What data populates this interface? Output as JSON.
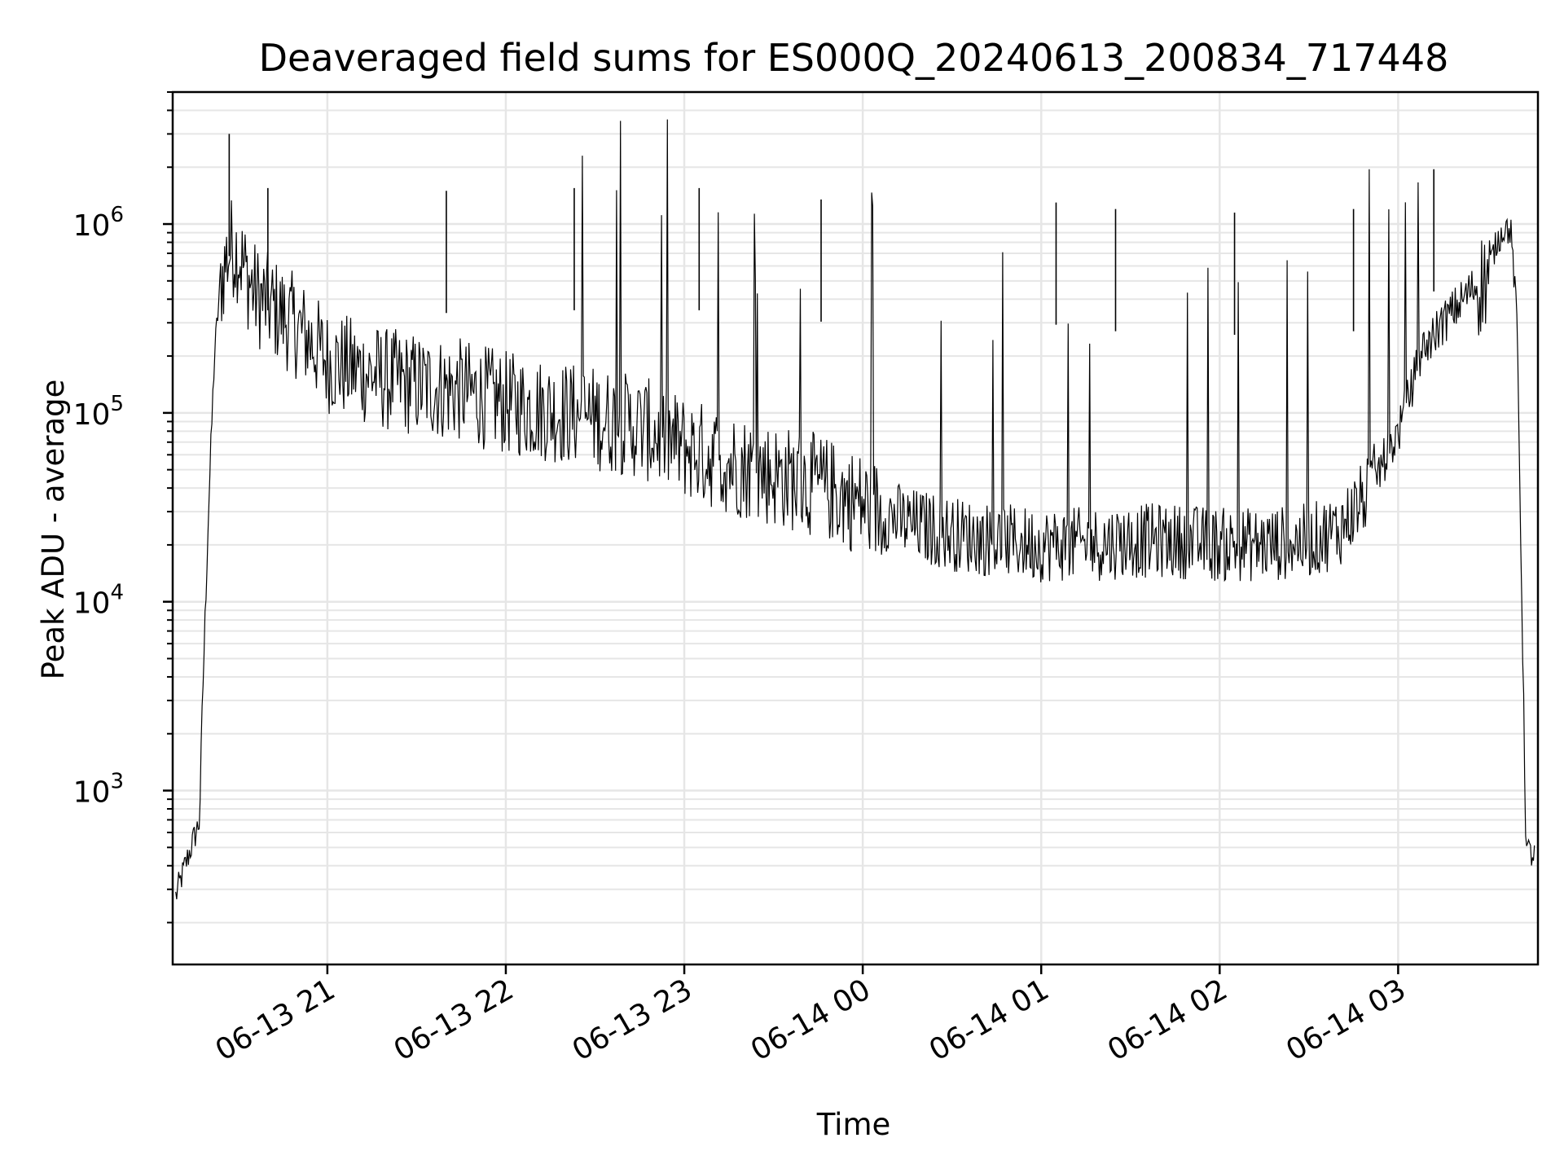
{
  "chart_data": {
    "type": "line",
    "title": "Deaveraged field sums for ES000Q_20240613_200834_717448",
    "xlabel": "Time",
    "ylabel": "Peak ADU - average",
    "yscale": "log",
    "grid": true,
    "line_color": "#000000",
    "grid_color": "#e6e6e6",
    "xlim": [
      "2024-06-13 20:08",
      "2024-06-14 03:47"
    ],
    "ylim": [
      120,
      5000000
    ],
    "x_ticks": [
      {
        "value": "2024-06-13 21:00",
        "label": "06-13 21"
      },
      {
        "value": "2024-06-13 22:00",
        "label": "06-13 22"
      },
      {
        "value": "2024-06-13 23:00",
        "label": "06-13 23"
      },
      {
        "value": "2024-06-14 00:00",
        "label": "06-14 00"
      },
      {
        "value": "2024-06-14 01:00",
        "label": "06-14 01"
      },
      {
        "value": "2024-06-14 02:00",
        "label": "06-14 02"
      },
      {
        "value": "2024-06-14 03:00",
        "label": "06-14 03"
      }
    ],
    "y_ticks": [
      {
        "value": 1000,
        "base": "10",
        "exp": "3"
      },
      {
        "value": 10000,
        "base": "10",
        "exp": "4"
      },
      {
        "value": 100000,
        "base": "10",
        "exp": "5"
      },
      {
        "value": 1000000,
        "base": "10",
        "exp": "6"
      }
    ],
    "series": [
      {
        "x": [
          "2024-06-13 20:09",
          "2024-06-13 20:12",
          "2024-06-13 20:15",
          "2024-06-13 20:17",
          "2024-06-13 20:18",
          "2024-06-13 20:20",
          "2024-06-13 20:22",
          "2024-06-13 20:24",
          "2024-06-13 20:26",
          "2024-06-13 20:28",
          "2024-06-13 20:30",
          "2024-06-13 20:33",
          "2024-06-13 20:36",
          "2024-06-13 20:40",
          "2024-06-13 20:45",
          "2024-06-13 20:50",
          "2024-06-13 20:55",
          "2024-06-13 21:00",
          "2024-06-13 21:10",
          "2024-06-13 21:20",
          "2024-06-13 21:30",
          "2024-06-13 21:45",
          "2024-06-13 22:00",
          "2024-06-13 22:15",
          "2024-06-13 22:30",
          "2024-06-13 22:45",
          "2024-06-13 23:00",
          "2024-06-13 23:15",
          "2024-06-13 23:30",
          "2024-06-13 23:45",
          "2024-06-14 00:00",
          "2024-06-14 00:15",
          "2024-06-14 00:30",
          "2024-06-14 00:45",
          "2024-06-14 01:00",
          "2024-06-14 01:15",
          "2024-06-14 01:30",
          "2024-06-14 01:45",
          "2024-06-14 02:00",
          "2024-06-14 02:15",
          "2024-06-14 02:30",
          "2024-06-14 02:40",
          "2024-06-14 02:50",
          "2024-06-14 03:00",
          "2024-06-14 03:08",
          "2024-06-14 03:16",
          "2024-06-14 03:24",
          "2024-06-14 03:30",
          "2024-06-14 03:33",
          "2024-06-14 03:36",
          "2024-06-14 03:38",
          "2024-06-14 03:40",
          "2024-06-14 03:43",
          "2024-06-14 03:46"
        ],
        "y": [
          280,
          400,
          560,
          700,
          3000,
          30000,
          200000,
          500000,
          700000,
          820000,
          760000,
          560000,
          450000,
          400000,
          350000,
          300000,
          250000,
          200000,
          180000,
          160000,
          150000,
          140000,
          120000,
          110000,
          100000,
          90000,
          70000,
          58000,
          50000,
          44000,
          35000,
          27000,
          24000,
          22000,
          21000,
          21000,
          22000,
          22000,
          21000,
          21000,
          22000,
          25000,
          40000,
          80000,
          220000,
          320000,
          450000,
          560000,
          800000,
          1000000,
          900000,
          300000,
          500,
          450
        ]
      }
    ],
    "spikes": [
      {
        "x": "2024-06-13 20:27",
        "y": 3000000
      },
      {
        "x": "2024-06-13 20:40",
        "y": 1550000
      },
      {
        "x": "2024-06-13 21:40",
        "y": 1500000
      },
      {
        "x": "2024-06-13 22:23",
        "y": 1550000
      },
      {
        "x": "2024-06-13 23:05",
        "y": 1550000
      },
      {
        "x": "2024-06-13 23:46",
        "y": 1350000
      },
      {
        "x": "2024-06-14 01:05",
        "y": 1300000
      },
      {
        "x": "2024-06-14 01:25",
        "y": 1200000
      },
      {
        "x": "2024-06-14 02:05",
        "y": 1150000
      },
      {
        "x": "2024-06-14 02:45",
        "y": 1200000
      },
      {
        "x": "2024-06-14 03:12",
        "y": 1950000
      }
    ]
  }
}
